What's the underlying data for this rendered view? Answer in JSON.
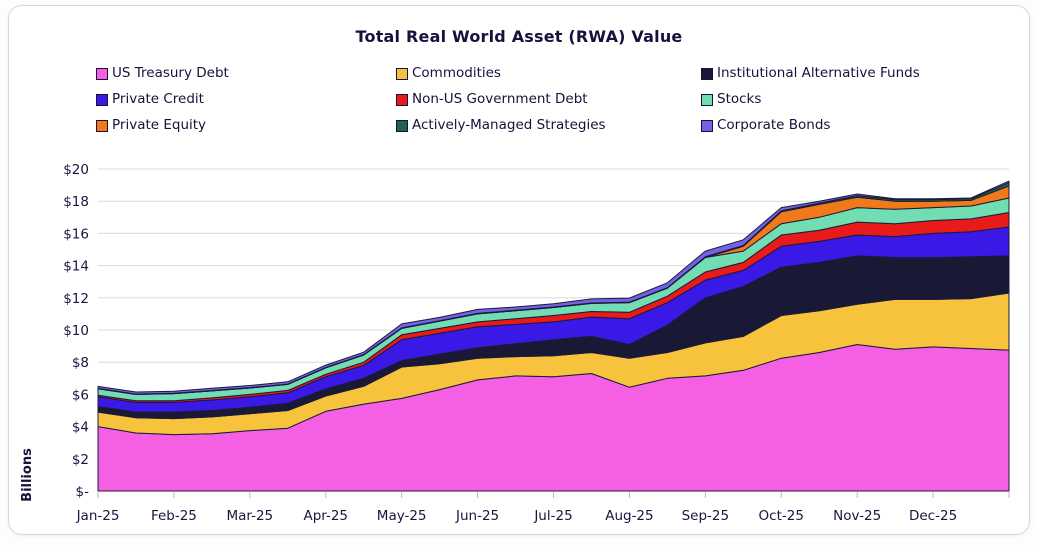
{
  "chart_data": {
    "type": "area",
    "stacked": true,
    "title": "Total Real World Asset (RWA) Value",
    "ylabel": "Billions",
    "unit": "USD billions",
    "ymax": 20,
    "grid": "horizontal",
    "legend_position": "top",
    "y_ticks": {
      "values": [
        0,
        2,
        4,
        6,
        8,
        10,
        12,
        14,
        16,
        18,
        20
      ],
      "labels": [
        "$-",
        "$2",
        "$4",
        "$6",
        "$8",
        "$10",
        "$12",
        "$14",
        "$16",
        "$18",
        "$20"
      ]
    },
    "categories": [
      "Jan-25",
      "Feb-25",
      "Mar-25",
      "Apr-25",
      "May-25",
      "Jun-25",
      "Jul-25",
      "Aug-25",
      "Sep-25",
      "Oct-25",
      "Nov-25",
      "Dec-25"
    ],
    "samples_per_month": 2,
    "note": "series listed bottom-to-top of stack; values sampled twice monthly Jan-25 through end of Dec-25, in $ billions",
    "colors": {
      "outline": "#1b1b3a",
      "gridline": "#dcdcdc",
      "axis_tick": "#b9b9bf",
      "text": "#17123c",
      "card_border": "#d8d8dc",
      "background": "#ffffff"
    },
    "series": [
      {
        "name": "US Treasury Debt",
        "color": "#f45fe3",
        "values": [
          4.0,
          3.6,
          3.5,
          3.55,
          3.75,
          3.9,
          4.95,
          5.4,
          5.75,
          6.3,
          6.9,
          7.15,
          7.1,
          7.3,
          6.45,
          7.0,
          7.15,
          7.5,
          8.25,
          8.6,
          9.1,
          8.8,
          8.95,
          8.85,
          8.75
        ]
      },
      {
        "name": "Commodities",
        "color": "#f8c33c",
        "values": [
          0.9,
          0.95,
          1.0,
          1.05,
          1.05,
          1.1,
          0.95,
          1.1,
          1.95,
          1.6,
          1.35,
          1.2,
          1.3,
          1.3,
          1.8,
          1.6,
          2.05,
          2.1,
          2.65,
          2.6,
          2.5,
          3.1,
          2.95,
          3.1,
          3.55
        ]
      },
      {
        "name": "Institutional Alternative Funds",
        "color": "#191935",
        "values": [
          0.35,
          0.35,
          0.4,
          0.4,
          0.4,
          0.45,
          0.45,
          0.5,
          0.4,
          0.6,
          0.65,
          0.8,
          1.0,
          1.0,
          0.85,
          1.7,
          2.8,
          3.1,
          3.0,
          3.0,
          3.0,
          2.6,
          2.6,
          2.6,
          2.3
        ]
      },
      {
        "name": "Private Credit",
        "color": "#3a18e6",
        "values": [
          0.6,
          0.6,
          0.6,
          0.65,
          0.65,
          0.65,
          0.75,
          0.8,
          1.3,
          1.3,
          1.3,
          1.2,
          1.1,
          1.2,
          1.6,
          1.4,
          1.1,
          1.0,
          1.3,
          1.3,
          1.3,
          1.3,
          1.5,
          1.55,
          1.8
        ]
      },
      {
        "name": "Non-US Government Debt",
        "color": "#e81a1a",
        "values": [
          0.1,
          0.1,
          0.1,
          0.13,
          0.15,
          0.15,
          0.15,
          0.2,
          0.3,
          0.3,
          0.3,
          0.35,
          0.4,
          0.35,
          0.4,
          0.4,
          0.5,
          0.5,
          0.7,
          0.7,
          0.8,
          0.8,
          0.8,
          0.8,
          0.9
        ]
      },
      {
        "name": "Stocks",
        "color": "#72dcb2",
        "values": [
          0.4,
          0.4,
          0.45,
          0.44,
          0.4,
          0.37,
          0.4,
          0.45,
          0.4,
          0.45,
          0.5,
          0.5,
          0.5,
          0.5,
          0.6,
          0.5,
          0.9,
          0.7,
          0.7,
          0.8,
          0.9,
          0.9,
          0.8,
          0.8,
          0.9
        ]
      },
      {
        "name": "Private Equity",
        "color": "#f0791a",
        "values": [
          0,
          0,
          0,
          0,
          0,
          0,
          0,
          0,
          0,
          0,
          0,
          0,
          0,
          0,
          0,
          0,
          0,
          0.3,
          0.75,
          0.8,
          0.65,
          0.5,
          0.4,
          0.35,
          0.75
        ]
      },
      {
        "name": "Actively-Managed Strategies",
        "color": "#1c6351",
        "values": [
          0.02,
          0.02,
          0.02,
          0.02,
          0.02,
          0.02,
          0.02,
          0.02,
          0.03,
          0.03,
          0.03,
          0.03,
          0.03,
          0.03,
          0.03,
          0.03,
          0.05,
          0.05,
          0.05,
          0.08,
          0.1,
          0.1,
          0.1,
          0.1,
          0.2
        ]
      },
      {
        "name": "Corporate Bonds",
        "color": "#7263e4",
        "values": [
          0.13,
          0.13,
          0.13,
          0.14,
          0.13,
          0.14,
          0.15,
          0.15,
          0.25,
          0.2,
          0.25,
          0.2,
          0.2,
          0.25,
          0.25,
          0.3,
          0.35,
          0.35,
          0.2,
          0.12,
          0.1,
          0.05,
          0.05,
          0.05,
          0.1
        ]
      }
    ]
  }
}
